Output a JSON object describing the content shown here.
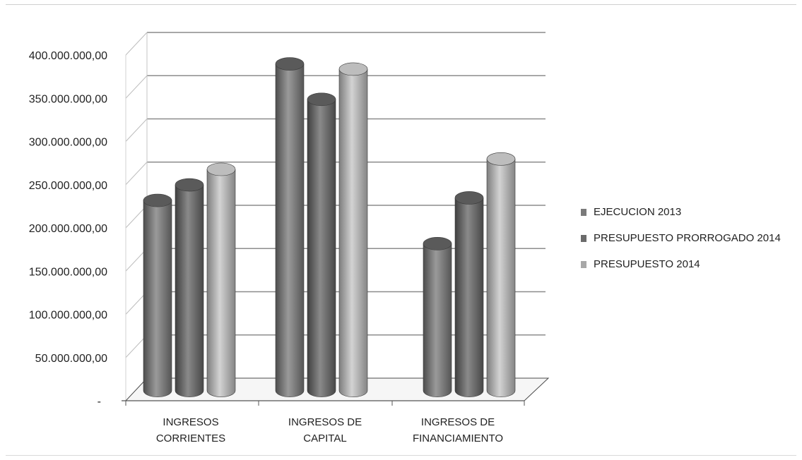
{
  "chart_data": {
    "type": "bar",
    "style": "3d-cylinder",
    "categories": [
      "INGRESOS\nCORRIENTES",
      "INGRESOS DE\nCAPITAL",
      "INGRESOS DE\nFINANCIAMIENTO"
    ],
    "series": [
      {
        "name": "EJECUCION 2013",
        "values": [
          220000000,
          378000000,
          170000000
        ],
        "color": "#7a7a7a"
      },
      {
        "name": "PRESUPUESTO PRORROGADO 2014",
        "values": [
          238000000,
          337000000,
          223000000
        ],
        "color": "#6b6b6b"
      },
      {
        "name": "PRESUPUESTO 2014",
        "values": [
          256000000,
          372000000,
          268000000
        ],
        "color": "#a8a8a8"
      }
    ],
    "y_ticks": [
      "-",
      "50.000.000,00",
      "100.000.000,00",
      "150.000.000,00",
      "200.000.000,00",
      "250.000.000,00",
      "300.000.000,00",
      "350.000.000,00",
      "400.000.000,00"
    ],
    "ylim": [
      0,
      400000000
    ],
    "title": "",
    "xlabel": "",
    "ylabel": "",
    "grid": true,
    "legend_position": "right"
  }
}
